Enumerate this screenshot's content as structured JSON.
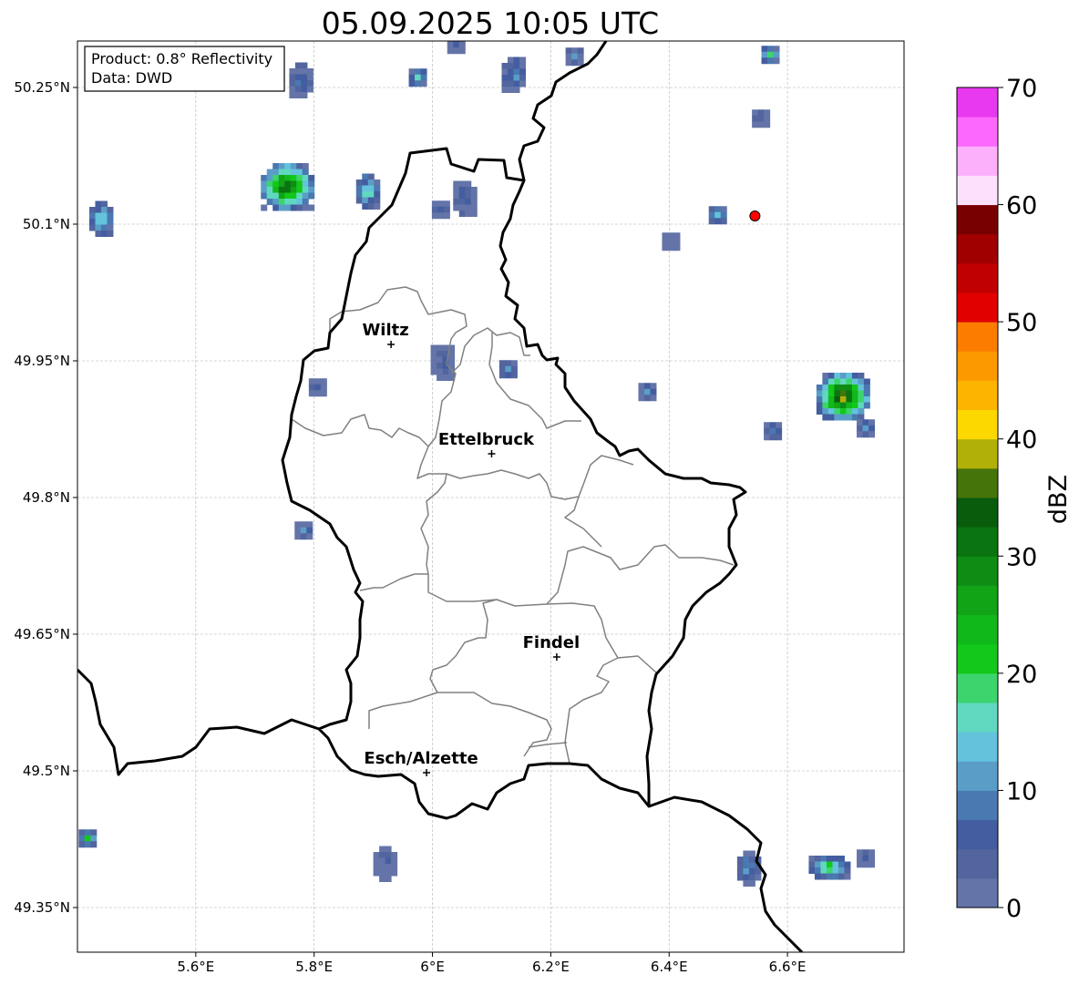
{
  "title": "05.09.2025 10:05 UTC",
  "info_box": {
    "product": "Product: 0.8° Reflectivity",
    "data": "Data: DWD"
  },
  "axes": {
    "lon_ticks": [
      {
        "value": 5.6,
        "label": "5.6°E"
      },
      {
        "value": 5.8,
        "label": "5.8°E"
      },
      {
        "value": 6.0,
        "label": "6°E"
      },
      {
        "value": 6.2,
        "label": "6.2°E"
      },
      {
        "value": 6.4,
        "label": "6.4°E"
      },
      {
        "value": 6.6,
        "label": "6.6°E"
      }
    ],
    "lat_ticks": [
      {
        "value": 50.25,
        "label": "50.25°N"
      },
      {
        "value": 50.1,
        "label": "50.1°N"
      },
      {
        "value": 49.95,
        "label": "49.95°N"
      },
      {
        "value": 49.8,
        "label": "49.8°N"
      },
      {
        "value": 49.65,
        "label": "49.65°N"
      },
      {
        "value": 49.5,
        "label": "49.5°N"
      },
      {
        "value": 49.35,
        "label": "49.35°N"
      }
    ],
    "lon_range": [
      5.4,
      6.797
    ],
    "lat_range": [
      49.301,
      50.301
    ]
  },
  "cities": [
    {
      "name": "Wiltz",
      "lon": 5.93,
      "lat": 49.968
    },
    {
      "name": "Ettelbruck",
      "lon": 6.1,
      "lat": 49.848
    },
    {
      "name": "Findel",
      "lon": 6.21,
      "lat": 49.625
    },
    {
      "name": "Esch/Alzette",
      "lon": 5.99,
      "lat": 49.498
    }
  ],
  "marker": {
    "lon": 6.545,
    "lat": 50.109,
    "color": "#ff0000"
  },
  "echoes": [
    {
      "lon": 5.44,
      "lat": 50.106,
      "dbz": 21,
      "size": "small"
    },
    {
      "lon": 5.778,
      "lat": 50.258,
      "dbz": 12,
      "size": "small"
    },
    {
      "lon": 5.975,
      "lat": 50.261,
      "dbz": 20,
      "size": "tiny"
    },
    {
      "lon": 6.04,
      "lat": 50.297,
      "dbz": 8,
      "size": "tiny"
    },
    {
      "lon": 6.137,
      "lat": 50.264,
      "dbz": 15,
      "size": "small"
    },
    {
      "lon": 6.24,
      "lat": 50.284,
      "dbz": 14,
      "size": "tiny"
    },
    {
      "lon": 6.571,
      "lat": 50.286,
      "dbz": 24,
      "size": "tiny"
    },
    {
      "lon": 6.555,
      "lat": 50.216,
      "dbz": 6,
      "size": "tiny"
    },
    {
      "lon": 5.755,
      "lat": 50.141,
      "dbz": 38,
      "size": "large"
    },
    {
      "lon": 5.891,
      "lat": 50.136,
      "dbz": 22,
      "size": "small"
    },
    {
      "lon": 6.014,
      "lat": 50.116,
      "dbz": 8,
      "size": "tiny"
    },
    {
      "lon": 6.055,
      "lat": 50.128,
      "dbz": 9,
      "size": "small"
    },
    {
      "lon": 6.482,
      "lat": 50.11,
      "dbz": 19,
      "size": "tiny"
    },
    {
      "lon": 6.403,
      "lat": 50.081,
      "dbz": 5,
      "size": "tiny"
    },
    {
      "lon": 6.017,
      "lat": 49.948,
      "dbz": 9,
      "size": "small"
    },
    {
      "lon": 5.806,
      "lat": 49.921,
      "dbz": 8,
      "size": "tiny"
    },
    {
      "lon": 6.128,
      "lat": 49.941,
      "dbz": 13,
      "size": "tiny"
    },
    {
      "lon": 6.363,
      "lat": 49.916,
      "dbz": 12,
      "size": "tiny"
    },
    {
      "lon": 6.694,
      "lat": 49.911,
      "dbz": 42,
      "size": "large"
    },
    {
      "lon": 6.732,
      "lat": 49.876,
      "dbz": 14,
      "size": "tiny"
    },
    {
      "lon": 6.575,
      "lat": 49.873,
      "dbz": 15,
      "size": "tiny"
    },
    {
      "lon": 5.782,
      "lat": 49.764,
      "dbz": 14,
      "size": "tiny"
    },
    {
      "lon": 5.417,
      "lat": 49.426,
      "dbz": 23,
      "size": "tiny"
    },
    {
      "lon": 5.92,
      "lat": 49.398,
      "dbz": 7,
      "size": "small"
    },
    {
      "lon": 6.535,
      "lat": 49.393,
      "dbz": 15,
      "size": "small"
    },
    {
      "lon": 6.671,
      "lat": 49.394,
      "dbz": 26,
      "size": "medium"
    },
    {
      "lon": 6.732,
      "lat": 49.404,
      "dbz": 10,
      "size": "tiny"
    }
  ],
  "colorbar": {
    "label": "dBZ",
    "min": 0,
    "max": 70,
    "step": 2.5,
    "ticks": [
      {
        "value": 0,
        "label": "0"
      },
      {
        "value": 10,
        "label": "10"
      },
      {
        "value": 20,
        "label": "20"
      },
      {
        "value": 30,
        "label": "30"
      },
      {
        "value": 40,
        "label": "40"
      },
      {
        "value": 50,
        "label": "50"
      },
      {
        "value": 60,
        "label": "60"
      },
      {
        "value": 70,
        "label": "70"
      }
    ],
    "colors": [
      "#6474a8",
      "#52659e",
      "#435da0",
      "#4a78b0",
      "#5a9ec8",
      "#64c2dc",
      "#60d8c0",
      "#3cd46c",
      "#12c81a",
      "#10b81a",
      "#10a416",
      "#0e8c14",
      "#0a7410",
      "#085c0c",
      "#44740a",
      "#b0b008",
      "#fcd800",
      "#fcb400",
      "#fc9800",
      "#fc7c00",
      "#e00000",
      "#c00000",
      "#a00000",
      "#780000",
      "#fce0fc",
      "#fcb0fc",
      "#fc68fc",
      "#e838f0"
    ]
  }
}
